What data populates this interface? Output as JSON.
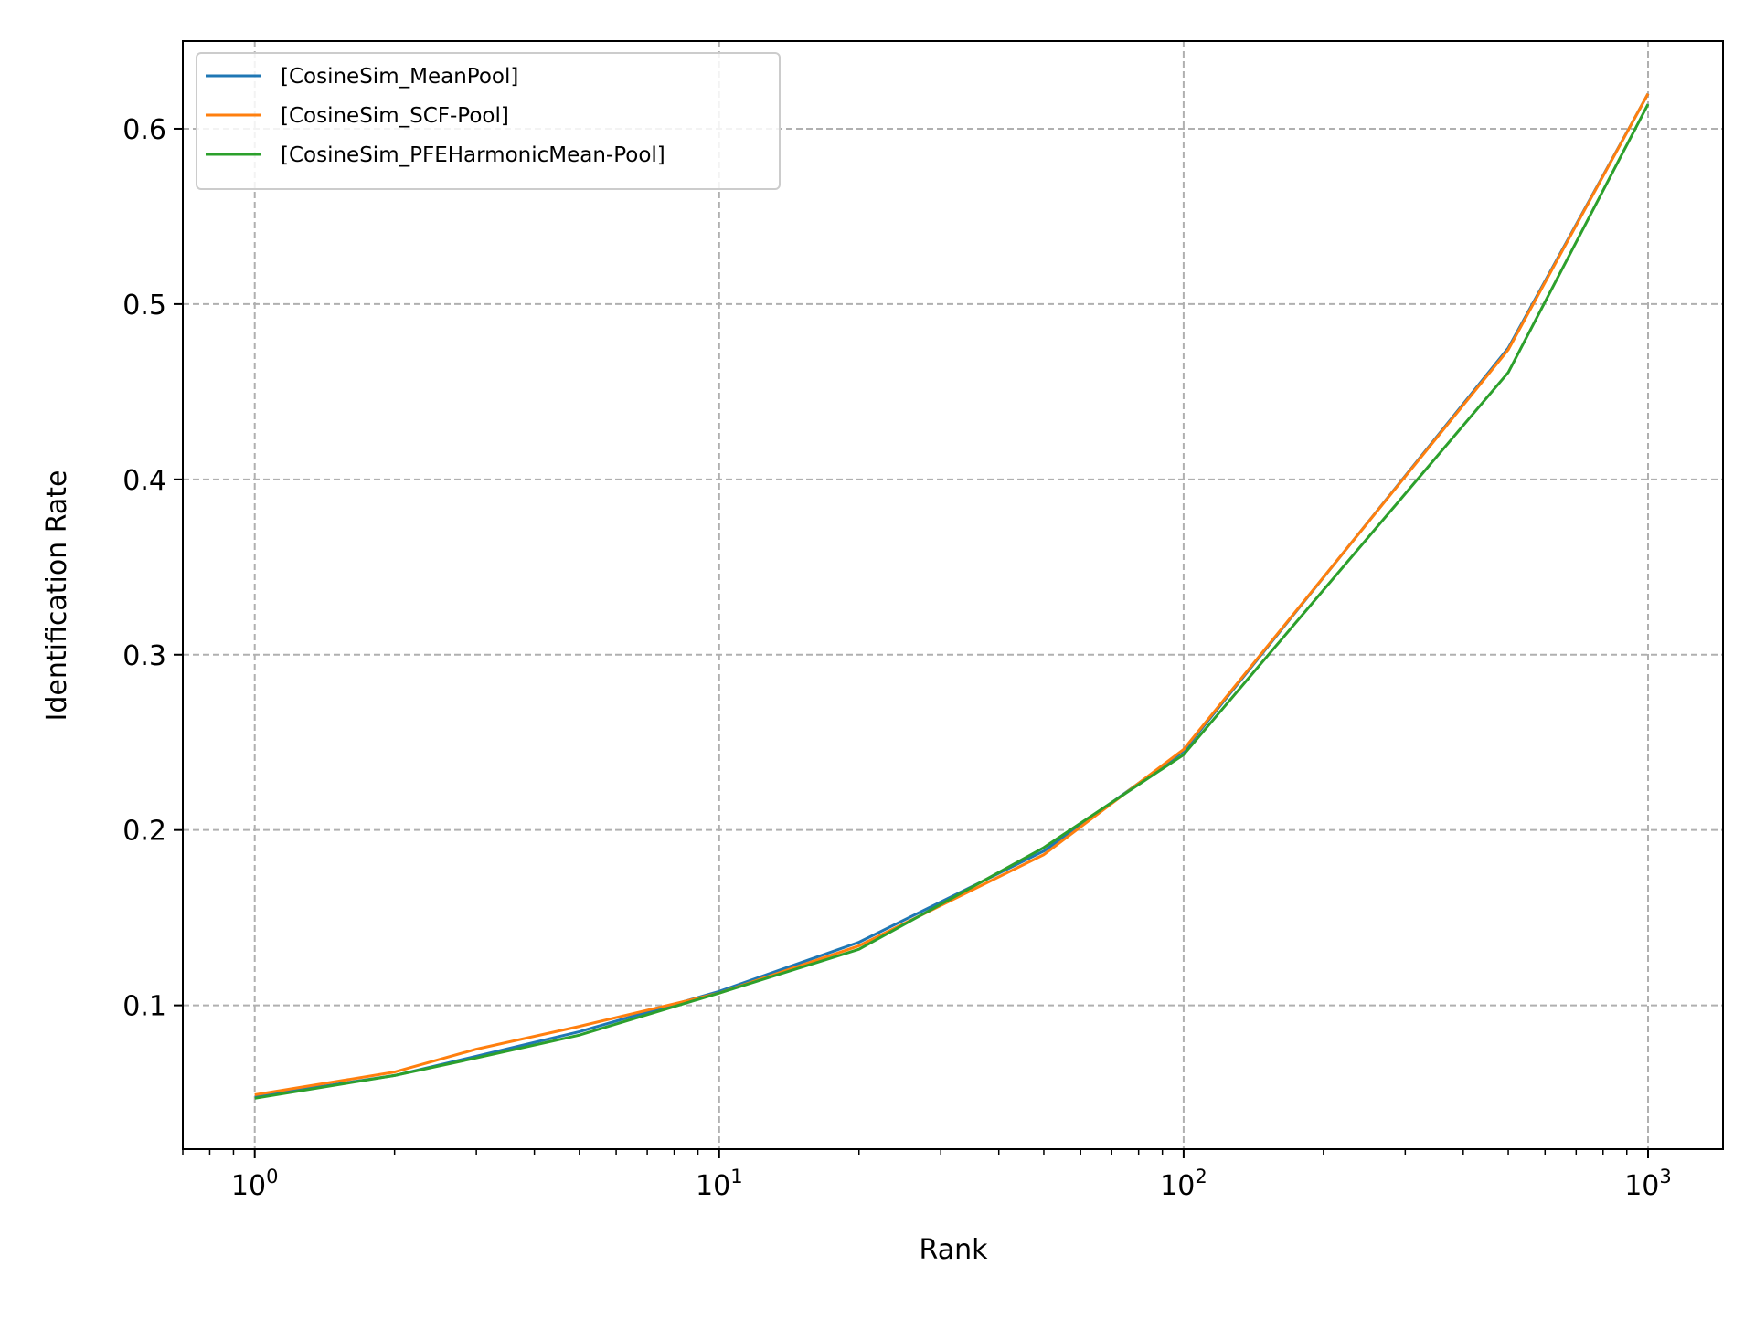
{
  "chart_data": {
    "type": "line",
    "xlabel": "Rank",
    "ylabel": "Identification Rate",
    "xscale": "log",
    "xlim": [
      0.7,
      1450
    ],
    "ylim": [
      0.018,
      0.65
    ],
    "grid": true,
    "legend_position": "top-left",
    "x_major_ticks": [
      {
        "value": 1,
        "base": "10",
        "exp": "0"
      },
      {
        "value": 10,
        "base": "10",
        "exp": "1"
      },
      {
        "value": 100,
        "base": "10",
        "exp": "2"
      },
      {
        "value": 1000,
        "base": "10",
        "exp": "3"
      }
    ],
    "y_ticks": [
      {
        "value": 0.1,
        "label": "0.1"
      },
      {
        "value": 0.2,
        "label": "0.2"
      },
      {
        "value": 0.3,
        "label": "0.3"
      },
      {
        "value": 0.4,
        "label": "0.4"
      },
      {
        "value": 0.5,
        "label": "0.5"
      },
      {
        "value": 0.6,
        "label": "0.6"
      }
    ],
    "x": [
      1,
      2,
      3,
      5,
      10,
      20,
      50,
      100,
      500,
      1000
    ],
    "series": [
      {
        "name": "[CosineSim_MeanPool]",
        "color": "#1f77b4",
        "values": [
          0.048,
          0.06,
          0.071,
          0.085,
          0.108,
          0.136,
          0.188,
          0.245,
          0.475,
          0.62
        ]
      },
      {
        "name": "[CosineSim_SCF-Pool]",
        "color": "#ff7f0e",
        "values": [
          0.049,
          0.062,
          0.075,
          0.088,
          0.107,
          0.134,
          0.186,
          0.246,
          0.474,
          0.62
        ]
      },
      {
        "name": "[CosineSim_PFEHarmonicMean-Pool]",
        "color": "#2ca02c",
        "values": [
          0.047,
          0.06,
          0.07,
          0.083,
          0.107,
          0.132,
          0.19,
          0.243,
          0.461,
          0.614
        ]
      }
    ]
  }
}
